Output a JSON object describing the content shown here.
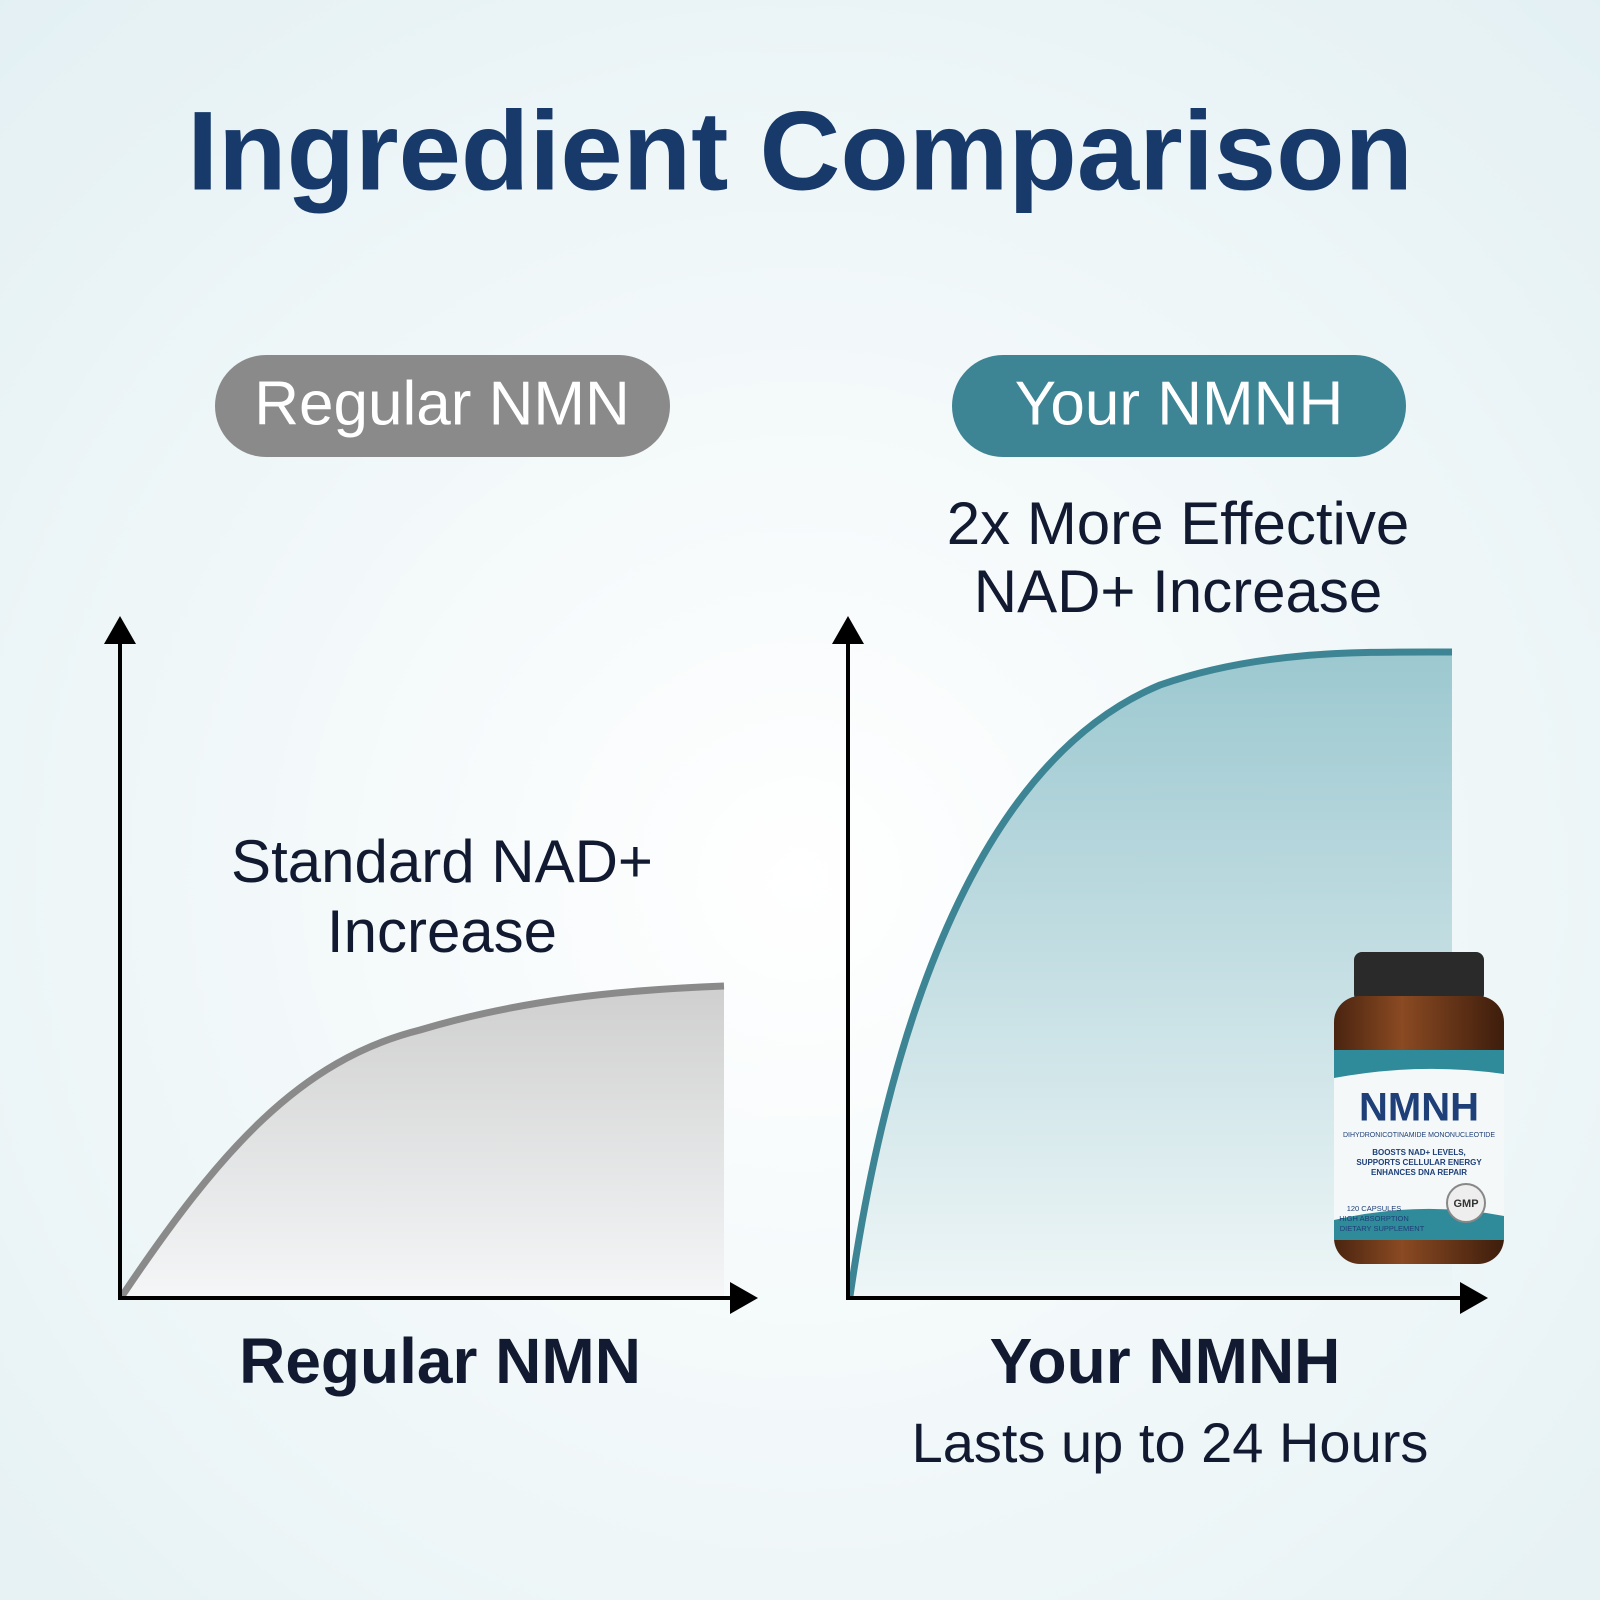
{
  "header": {
    "title": "Ingredient Comparison"
  },
  "panels": [
    {
      "badge": "Regular NMN",
      "annotation": [
        "Standard NAD+",
        "Increase"
      ],
      "x_label": "Regular NMN"
    },
    {
      "badge": "Your NMNH",
      "annotation": [
        "2x More Effective",
        "NAD+ Increase"
      ],
      "x_label": "Your NMNH",
      "x_sublabel": "Lasts up to 24 Hours"
    }
  ],
  "product": {
    "name": "NMNH",
    "subtitle": "DIHYDRONICOTINAMIDE MONONUCLEOTIDE",
    "claims": [
      "BOOSTS NAD+ LEVELS,",
      "SUPPORTS CELLULAR ENERGY",
      "ENHANCES DNA REPAIR"
    ],
    "details": [
      "120 CAPSULES",
      "HIGH ABSORPTION",
      "DIETARY SUPPLEMENT"
    ],
    "seal": "GMP"
  }
}
